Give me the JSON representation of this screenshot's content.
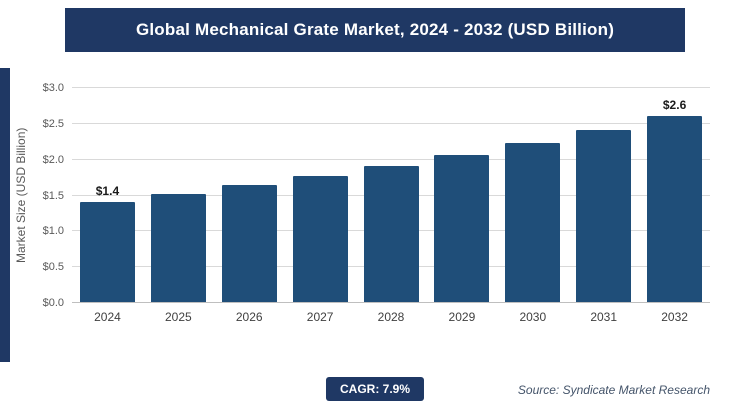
{
  "header": {
    "title": "Global Mechanical Grate Market, 2024 - 2032 (USD Billion)"
  },
  "chart_data": {
    "type": "bar",
    "title": "Global Mechanical Grate Market, 2024 - 2032 (USD Billion)",
    "categories": [
      "2024",
      "2025",
      "2026",
      "2027",
      "2028",
      "2029",
      "2030",
      "2031",
      "2032"
    ],
    "values": [
      1.4,
      1.51,
      1.63,
      1.76,
      1.9,
      2.05,
      2.22,
      2.4,
      2.6
    ],
    "point_labels": [
      "$1.4",
      "",
      "",
      "",
      "",
      "",
      "",
      "",
      "$2.6"
    ],
    "xlabel": "",
    "ylabel": "Market Size (USD Billion)",
    "ylim": [
      0,
      3.0
    ],
    "ytick_step": 0.5,
    "ytick_prefix": "$",
    "grid": true,
    "legend": "none",
    "bar_color": "#1f4e79"
  },
  "footer": {
    "cagr_label": "CAGR: 7.9%",
    "source": "Source: Syndicate Market Research"
  },
  "colors": {
    "banner_bg": "#1f3864",
    "bar": "#1f4e79",
    "gridline": "#d9d9d9",
    "axis_text": "#595959"
  }
}
